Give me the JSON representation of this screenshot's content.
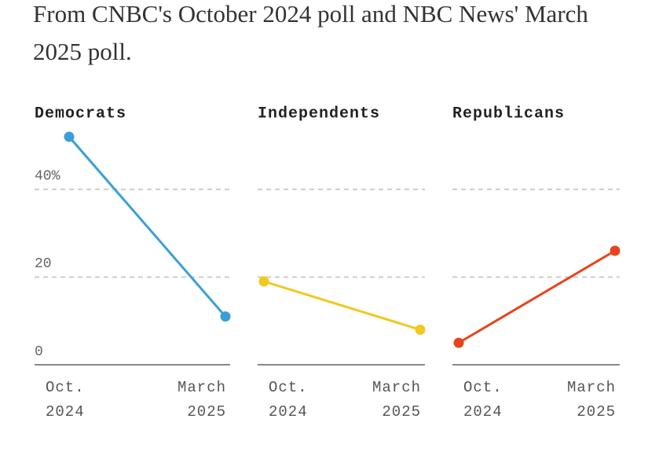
{
  "subtitle": "From CNBC's October 2024 poll and NBC News' March 2025 poll.",
  "chart_data": [
    {
      "type": "line",
      "title": "Democrats",
      "categories": [
        "Oct.\n2024",
        "March\n2025"
      ],
      "values": [
        52,
        11
      ],
      "color": "#3a9fd6",
      "ylim": [
        0,
        52
      ],
      "yticks": [
        0,
        20,
        {
          "value": 40,
          "label": "40%"
        }
      ],
      "grid": true
    },
    {
      "type": "line",
      "title": "Independents",
      "categories": [
        "Oct.\n2024",
        "March\n2025"
      ],
      "values": [
        19,
        8
      ],
      "color": "#f2c81f",
      "ylim": [
        0,
        52
      ],
      "grid": true
    },
    {
      "type": "line",
      "title": "Republicans",
      "categories": [
        "Oct.\n2024",
        "March\n2025"
      ],
      "values": [
        5,
        26
      ],
      "color": "#e8441c",
      "ylim": [
        0,
        52
      ],
      "grid": true
    }
  ]
}
